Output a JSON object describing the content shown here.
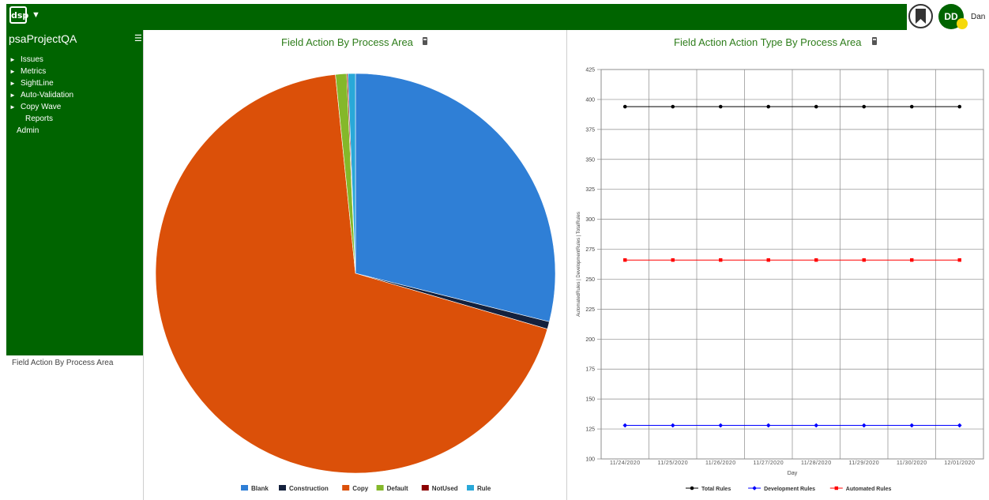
{
  "app": {
    "logo_text": "dsp",
    "logo_caret": "▼",
    "user_initials": "DD",
    "user_name": "Dan"
  },
  "sidebar": {
    "project": "psaProjectQA",
    "items": [
      {
        "label": "Issues",
        "expandable": true
      },
      {
        "label": "Metrics",
        "expandable": true
      },
      {
        "label": "SightLine",
        "expandable": true
      },
      {
        "label": "Auto-Validation",
        "expandable": true
      },
      {
        "label": "Copy Wave",
        "expandable": true
      },
      {
        "label": "Reports",
        "expandable": false
      },
      {
        "label": "Admin",
        "expandable": false
      }
    ],
    "caption": "Field Action By Process Area"
  },
  "chart_data": [
    {
      "type": "pie",
      "title": "Field Action By Process Area",
      "categories": [
        "Blank",
        "Construction",
        "Copy",
        "Default",
        "NotUsed",
        "Rule"
      ],
      "values": [
        28.9,
        0.6,
        68.9,
        0.9,
        0.1,
        0.6
      ],
      "colors": [
        "#2f7fd6",
        "#14213d",
        "#db5009",
        "#84b82a",
        "#8b0000",
        "#29a8d8"
      ],
      "legend": "bottom"
    },
    {
      "type": "line",
      "title": "Field Action Action Type By Process Area",
      "xlabel": "Day",
      "ylabel": "AutomatedRules | DevelopmentRules | TotalRules",
      "x": [
        "11/24/2020",
        "11/25/2020",
        "11/26/2020",
        "11/27/2020",
        "11/28/2020",
        "11/29/2020",
        "11/30/2020",
        "12/01/2020"
      ],
      "ylim": [
        100,
        425
      ],
      "yticks": [
        100,
        125,
        150,
        175,
        200,
        225,
        250,
        275,
        300,
        325,
        350,
        375,
        400,
        425
      ],
      "grid": true,
      "legend": "bottom",
      "series": [
        {
          "name": "Total Rules",
          "color": "#000000",
          "marker": "circle",
          "values": [
            394,
            394,
            394,
            394,
            394,
            394,
            394,
            394
          ]
        },
        {
          "name": "Development Rules",
          "color": "#0000ff",
          "marker": "diamond",
          "values": [
            128,
            128,
            128,
            128,
            128,
            128,
            128,
            128
          ]
        },
        {
          "name": "Automated Rules",
          "color": "#ff0000",
          "marker": "square",
          "values": [
            266,
            266,
            266,
            266,
            266,
            266,
            266,
            266
          ]
        }
      ]
    }
  ]
}
